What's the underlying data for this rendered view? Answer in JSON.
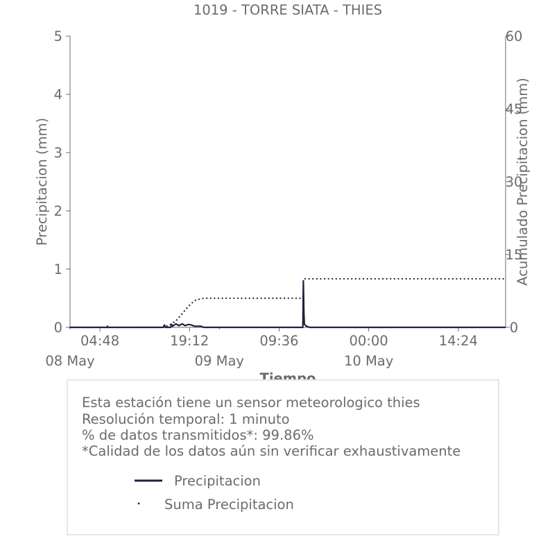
{
  "chart_data": {
    "type": "line",
    "title": "1019 - TORRE SIATA - THIES",
    "xlabel": "Tiempo",
    "ylabel": "Precipitacion (mm)",
    "y2label": "Acumulado Precipitacion (mm)",
    "x_range": [
      "2024-05-08 00:00",
      "2024-05-10 22:00"
    ],
    "ylim": [
      0,
      5
    ],
    "y2lim": [
      0,
      60
    ],
    "yticks": [
      "0",
      "1",
      "2",
      "3",
      "4",
      "5"
    ],
    "y2ticks": [
      "0",
      "15",
      "30",
      "45",
      "60"
    ],
    "xtick_labels": [
      "04:48",
      "19:12",
      "09:36",
      "00:00",
      "14:24"
    ],
    "xtick_times": [
      "2024-05-08 04:48",
      "2024-05-08 19:12",
      "2024-05-09 09:36",
      "2024-05-10 00:00",
      "2024-05-10 14:24"
    ],
    "date_labels": [
      "08 May",
      "09 May",
      "10 May"
    ],
    "date_times": [
      "2024-05-08 00:00",
      "2024-05-09 00:00",
      "2024-05-10 00:00"
    ],
    "grid": false,
    "series": [
      {
        "name": "Precipitacion",
        "style": "solid",
        "color": "#1f2041",
        "axis": "left",
        "points": [
          [
            "2024-05-08 00:00",
            0.0
          ],
          [
            "2024-05-08 06:00",
            0.0
          ],
          [
            "2024-05-08 06:01",
            0.02
          ],
          [
            "2024-05-08 06:02",
            0.0
          ],
          [
            "2024-05-08 15:00",
            0.0
          ],
          [
            "2024-05-08 15:10",
            0.04
          ],
          [
            "2024-05-08 15:20",
            0.0
          ],
          [
            "2024-05-08 16:10",
            0.0
          ],
          [
            "2024-05-08 16:20",
            0.05
          ],
          [
            "2024-05-08 16:30",
            0.02
          ],
          [
            "2024-05-08 17:00",
            0.06
          ],
          [
            "2024-05-08 17:30",
            0.03
          ],
          [
            "2024-05-08 18:00",
            0.06
          ],
          [
            "2024-05-08 18:30",
            0.03
          ],
          [
            "2024-05-08 19:00",
            0.05
          ],
          [
            "2024-05-08 19:30",
            0.04
          ],
          [
            "2024-05-08 20:00",
            0.02
          ],
          [
            "2024-05-08 21:00",
            0.02
          ],
          [
            "2024-05-08 21:30",
            0.0
          ],
          [
            "2024-05-09 13:25",
            0.0
          ],
          [
            "2024-05-09 13:30",
            0.8
          ],
          [
            "2024-05-09 13:35",
            0.25
          ],
          [
            "2024-05-09 13:40",
            0.05
          ],
          [
            "2024-05-09 14:00",
            0.02
          ],
          [
            "2024-05-09 14:30",
            0.0
          ],
          [
            "2024-05-10 22:00",
            0.0
          ]
        ]
      },
      {
        "name": "Suma Precipitacion",
        "style": "dotted",
        "color": "#1f2041",
        "axis": "right",
        "points": [
          [
            "2024-05-08 00:00",
            0.0
          ],
          [
            "2024-05-08 15:00",
            0.0
          ],
          [
            "2024-05-08 16:00",
            0.5
          ],
          [
            "2024-05-08 17:00",
            1.3
          ],
          [
            "2024-05-08 18:00",
            2.8
          ],
          [
            "2024-05-08 19:00",
            4.3
          ],
          [
            "2024-05-08 20:00",
            5.5
          ],
          [
            "2024-05-08 21:00",
            5.9
          ],
          [
            "2024-05-08 22:00",
            6.0
          ],
          [
            "2024-05-09 13:25",
            6.0
          ],
          [
            "2024-05-09 13:30",
            9.5
          ],
          [
            "2024-05-09 13:40",
            10.0
          ],
          [
            "2024-05-10 22:00",
            10.0
          ]
        ]
      }
    ]
  },
  "info": {
    "lines": [
      "Esta estación tiene un sensor meteorologico thies",
      "Resolución temporal: 1 minuto",
      "% de datos transmitidos*: 99.86%",
      "*Calidad de los datos aún sin verificar exhaustivamente"
    ]
  },
  "legend": {
    "items": [
      {
        "label": "Precipitacion",
        "style": "solid"
      },
      {
        "label": "Suma Precipitacion",
        "style": "dotted"
      }
    ]
  },
  "colors": {
    "series": "#1f2041",
    "axis": "#6b6b6b",
    "text": "#6b6b6b",
    "box_border": "#e6e6e6"
  }
}
